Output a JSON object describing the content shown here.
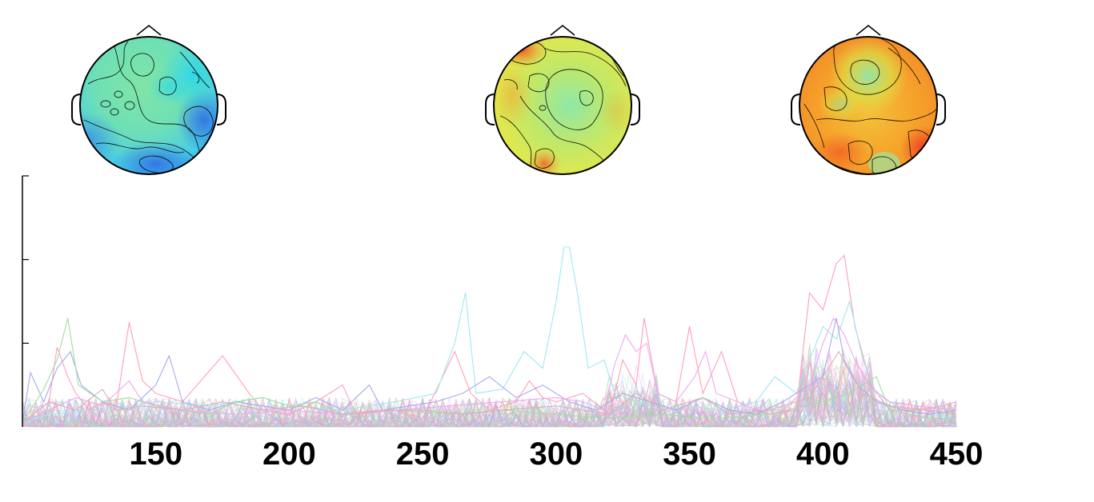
{
  "chart_data": {
    "type": "line",
    "title": "",
    "xlabel": "",
    "ylabel": "",
    "xlim": [
      100,
      450
    ],
    "ylim": [
      0,
      3
    ],
    "grid": false,
    "legend": "none",
    "x_ticks": [
      "150",
      "200",
      "250",
      "300",
      "350",
      "400",
      "450"
    ],
    "x_tick_values": [
      150,
      200,
      250,
      300,
      350,
      400,
      450
    ],
    "y_tick_values": [
      1,
      2,
      3
    ],
    "series_colors": [
      "#ff9fb8",
      "#9fe8ef",
      "#a7a9f0",
      "#9ee09e",
      "#f0a8f0",
      "#d9b2b2"
    ],
    "series": [
      {
        "values": [
          [
            100,
            0.05
          ],
          [
            110,
            0.3
          ],
          [
            113,
            0.95
          ],
          [
            117,
            0.6
          ],
          [
            120,
            0.4
          ],
          [
            125,
            0.2
          ],
          [
            130,
            0.3
          ],
          [
            135,
            0.2
          ],
          [
            140,
            1.25
          ],
          [
            145,
            0.55
          ],
          [
            150,
            0.4
          ],
          [
            160,
            0.3
          ],
          [
            175,
            0.85
          ],
          [
            185,
            0.4
          ],
          [
            190,
            0.2
          ],
          [
            200,
            0.15
          ],
          [
            210,
            0.3
          ],
          [
            220,
            0.5
          ],
          [
            225,
            0.15
          ],
          [
            240,
            0.2
          ],
          [
            250,
            0.1
          ],
          [
            262,
            0.9
          ],
          [
            268,
            0.4
          ],
          [
            275,
            0.2
          ],
          [
            285,
            0.3
          ],
          [
            290,
            0.55
          ],
          [
            295,
            0.35
          ],
          [
            300,
            0.3
          ],
          [
            310,
            0.4
          ],
          [
            320,
            0.15
          ],
          [
            325,
            0.8
          ],
          [
            330,
            0.5
          ],
          [
            333,
            1.3
          ],
          [
            338,
            0.4
          ],
          [
            345,
            0.3
          ],
          [
            350,
            1.2
          ],
          [
            355,
            0.4
          ],
          [
            362,
            0.9
          ],
          [
            368,
            0.3
          ],
          [
            375,
            0.2
          ],
          [
            380,
            0.15
          ],
          [
            390,
            0.2
          ],
          [
            395,
            1.6
          ],
          [
            400,
            1.4
          ],
          [
            405,
            1.95
          ],
          [
            408,
            2.05
          ],
          [
            412,
            1.2
          ],
          [
            418,
            0.5
          ],
          [
            425,
            0.2
          ],
          [
            435,
            0.2
          ],
          [
            445,
            0.25
          ],
          [
            450,
            0.3
          ]
        ]
      },
      {
        "values": [
          [
            100,
            0.05
          ],
          [
            110,
            0.15
          ],
          [
            130,
            0.2
          ],
          [
            150,
            0.3
          ],
          [
            170,
            0.25
          ],
          [
            190,
            0.35
          ],
          [
            200,
            0.25
          ],
          [
            220,
            0.2
          ],
          [
            240,
            0.3
          ],
          [
            255,
            0.4
          ],
          [
            262,
            1.0
          ],
          [
            266,
            1.6
          ],
          [
            270,
            0.4
          ],
          [
            280,
            0.45
          ],
          [
            288,
            0.9
          ],
          [
            295,
            0.7
          ],
          [
            300,
            1.5
          ],
          [
            303,
            2.15
          ],
          [
            305,
            2.15
          ],
          [
            308,
            1.6
          ],
          [
            312,
            0.7
          ],
          [
            318,
            0.8
          ],
          [
            322,
            0.4
          ],
          [
            330,
            0.3
          ],
          [
            340,
            0.2
          ],
          [
            350,
            0.25
          ],
          [
            362,
            0.2
          ],
          [
            375,
            0.3
          ],
          [
            382,
            0.6
          ],
          [
            390,
            0.4
          ],
          [
            400,
            1.2
          ],
          [
            405,
            1.05
          ],
          [
            410,
            1.5
          ],
          [
            415,
            0.8
          ],
          [
            420,
            0.4
          ],
          [
            430,
            0.2
          ],
          [
            440,
            0.15
          ],
          [
            450,
            0.1
          ]
        ]
      },
      {
        "values": [
          [
            100,
            0.05
          ],
          [
            103,
            0.65
          ],
          [
            108,
            0.3
          ],
          [
            113,
            0.7
          ],
          [
            118,
            0.9
          ],
          [
            122,
            0.5
          ],
          [
            130,
            0.3
          ],
          [
            140,
            0.2
          ],
          [
            150,
            0.5
          ],
          [
            155,
            0.85
          ],
          [
            160,
            0.3
          ],
          [
            170,
            0.2
          ],
          [
            180,
            0.3
          ],
          [
            190,
            0.25
          ],
          [
            200,
            0.2
          ],
          [
            210,
            0.35
          ],
          [
            220,
            0.2
          ],
          [
            230,
            0.5
          ],
          [
            235,
            0.2
          ],
          [
            245,
            0.25
          ],
          [
            255,
            0.3
          ],
          [
            265,
            0.4
          ],
          [
            275,
            0.6
          ],
          [
            285,
            0.35
          ],
          [
            295,
            0.5
          ],
          [
            305,
            0.3
          ],
          [
            315,
            0.2
          ],
          [
            325,
            0.4
          ],
          [
            335,
            0.3
          ],
          [
            345,
            0.2
          ],
          [
            355,
            0.35
          ],
          [
            365,
            0.2
          ],
          [
            375,
            0.15
          ],
          [
            385,
            0.3
          ],
          [
            395,
            0.5
          ],
          [
            400,
            0.6
          ],
          [
            405,
            1.3
          ],
          [
            408,
            0.8
          ],
          [
            413,
            0.5
          ],
          [
            420,
            0.3
          ],
          [
            430,
            0.2
          ],
          [
            440,
            0.15
          ],
          [
            450,
            0.2
          ]
        ]
      },
      {
        "values": [
          [
            100,
            0.05
          ],
          [
            108,
            0.45
          ],
          [
            113,
            0.8
          ],
          [
            117,
            1.3
          ],
          [
            121,
            0.5
          ],
          [
            130,
            0.3
          ],
          [
            140,
            0.35
          ],
          [
            150,
            0.25
          ],
          [
            160,
            0.2
          ],
          [
            170,
            0.15
          ],
          [
            180,
            0.3
          ],
          [
            190,
            0.35
          ],
          [
            200,
            0.25
          ],
          [
            210,
            0.3
          ],
          [
            220,
            0.15
          ],
          [
            240,
            0.2
          ],
          [
            260,
            0.15
          ],
          [
            280,
            0.2
          ],
          [
            300,
            0.15
          ],
          [
            320,
            0.1
          ],
          [
            340,
            0.15
          ],
          [
            360,
            0.1
          ],
          [
            380,
            0.15
          ],
          [
            400,
            0.3
          ],
          [
            410,
            0.4
          ],
          [
            420,
            0.6
          ],
          [
            425,
            0.2
          ],
          [
            440,
            0.1
          ],
          [
            450,
            0.1
          ]
        ]
      },
      {
        "values": [
          [
            100,
            0.05
          ],
          [
            110,
            0.2
          ],
          [
            120,
            0.35
          ],
          [
            130,
            0.25
          ],
          [
            140,
            0.55
          ],
          [
            145,
            0.3
          ],
          [
            160,
            0.2
          ],
          [
            180,
            0.15
          ],
          [
            200,
            0.2
          ],
          [
            220,
            0.15
          ],
          [
            240,
            0.2
          ],
          [
            260,
            0.25
          ],
          [
            280,
            0.3
          ],
          [
            300,
            0.35
          ],
          [
            310,
            0.3
          ],
          [
            318,
            0.2
          ],
          [
            322,
            0.75
          ],
          [
            326,
            1.1
          ],
          [
            330,
            0.9
          ],
          [
            334,
            1.0
          ],
          [
            338,
            0.4
          ],
          [
            345,
            0.3
          ],
          [
            352,
            0.6
          ],
          [
            356,
            0.9
          ],
          [
            360,
            0.4
          ],
          [
            368,
            0.3
          ],
          [
            375,
            0.2
          ],
          [
            385,
            0.2
          ],
          [
            395,
            0.5
          ],
          [
            400,
            1.0
          ],
          [
            404,
            1.3
          ],
          [
            408,
            1.1
          ],
          [
            412,
            0.8
          ],
          [
            417,
            0.5
          ],
          [
            425,
            0.3
          ],
          [
            435,
            0.25
          ],
          [
            450,
            0.2
          ]
        ]
      },
      {
        "values": [
          [
            100,
            0.05
          ],
          [
            110,
            0.3
          ],
          [
            120,
            0.2
          ],
          [
            130,
            0.45
          ],
          [
            135,
            0.2
          ],
          [
            145,
            0.25
          ],
          [
            160,
            0.2
          ],
          [
            175,
            0.3
          ],
          [
            190,
            0.2
          ],
          [
            205,
            0.25
          ],
          [
            220,
            0.15
          ],
          [
            235,
            0.2
          ],
          [
            250,
            0.2
          ],
          [
            265,
            0.15
          ],
          [
            280,
            0.2
          ],
          [
            300,
            0.25
          ],
          [
            320,
            0.15
          ],
          [
            330,
            0.4
          ],
          [
            340,
            0.2
          ],
          [
            355,
            0.35
          ],
          [
            365,
            0.15
          ],
          [
            380,
            0.2
          ],
          [
            395,
            0.35
          ],
          [
            402,
            0.7
          ],
          [
            406,
            0.9
          ],
          [
            410,
            0.65
          ],
          [
            415,
            0.4
          ],
          [
            425,
            0.25
          ],
          [
            440,
            0.2
          ],
          [
            450,
            0.15
          ]
        ]
      }
    ]
  },
  "topomaps": [
    {
      "palette": [
        "#3fbcee",
        "#55d6d6",
        "#6fe0a8",
        "#83e6a0",
        "#44c0f0",
        "#2f7ae8"
      ]
    },
    {
      "palette": [
        "#cde84a",
        "#b8e86a",
        "#98e89a",
        "#e8e84a",
        "#f0a830",
        "#f06a2a"
      ]
    },
    {
      "palette": [
        "#f3b028",
        "#f59a2a",
        "#e8df4a",
        "#9ae8a0",
        "#f0782a",
        "#ef4a2a"
      ]
    }
  ]
}
